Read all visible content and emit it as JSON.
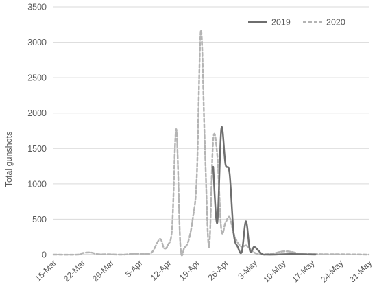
{
  "chart_data": {
    "type": "line",
    "title": "",
    "xlabel": "",
    "ylabel": "Total gunshots",
    "ylim": [
      0,
      3500
    ],
    "yticks": [
      "0",
      "500",
      "1000",
      "1500",
      "2000",
      "2500",
      "3000",
      "3500"
    ],
    "xlim": [
      "2020-03-15",
      "2020-05-31"
    ],
    "xticks": [
      "15-Mar",
      "22-Mar",
      "29-Mar",
      "5-Apr",
      "12-Apr",
      "19-Apr",
      "26-Apr",
      "3-May",
      "10-May",
      "17-May",
      "24-May",
      "31-May"
    ],
    "grid": true,
    "legend_position": "top-right",
    "series": [
      {
        "name": "2019",
        "color": "#6e6e6e",
        "style": "solid",
        "points": [
          [
            "2020-04-23",
            1240
          ],
          [
            "2020-04-24",
            450
          ],
          [
            "2020-04-25",
            1780
          ],
          [
            "2020-04-26",
            1280
          ],
          [
            "2020-04-27",
            1150
          ],
          [
            "2020-04-28",
            300
          ],
          [
            "2020-04-29",
            110
          ],
          [
            "2020-04-30",
            40
          ],
          [
            "2020-05-01",
            470
          ],
          [
            "2020-05-02",
            50
          ],
          [
            "2020-05-03",
            110
          ],
          [
            "2020-05-04",
            60
          ],
          [
            "2020-05-05",
            5
          ],
          [
            "2020-05-06",
            0
          ],
          [
            "2020-05-08",
            0
          ],
          [
            "2020-05-12",
            8
          ],
          [
            "2020-05-16",
            2
          ],
          [
            "2020-05-18",
            0
          ]
        ]
      },
      {
        "name": "2020",
        "color": "#b4b4b4",
        "style": "dashed",
        "points": [
          [
            "2020-03-15",
            0
          ],
          [
            "2020-03-21",
            0
          ],
          [
            "2020-03-22",
            20
          ],
          [
            "2020-03-24",
            30
          ],
          [
            "2020-03-26",
            5
          ],
          [
            "2020-03-28",
            5
          ],
          [
            "2020-04-01",
            0
          ],
          [
            "2020-04-04",
            15
          ],
          [
            "2020-04-06",
            10
          ],
          [
            "2020-04-08",
            30
          ],
          [
            "2020-04-10",
            220
          ],
          [
            "2020-04-11",
            90
          ],
          [
            "2020-04-12",
            140
          ],
          [
            "2020-04-13",
            400
          ],
          [
            "2020-04-14",
            1770
          ],
          [
            "2020-04-15",
            120
          ],
          [
            "2020-04-16",
            100
          ],
          [
            "2020-04-17",
            200
          ],
          [
            "2020-04-18",
            500
          ],
          [
            "2020-04-19",
            1100
          ],
          [
            "2020-04-20",
            3170
          ],
          [
            "2020-04-21",
            1500
          ],
          [
            "2020-04-22",
            100
          ],
          [
            "2020-04-23",
            1620
          ],
          [
            "2020-04-24",
            1400
          ],
          [
            "2020-04-25",
            350
          ],
          [
            "2020-04-26",
            450
          ],
          [
            "2020-04-27",
            530
          ],
          [
            "2020-04-28",
            300
          ],
          [
            "2020-04-29",
            170
          ],
          [
            "2020-04-30",
            110
          ],
          [
            "2020-05-01",
            130
          ],
          [
            "2020-05-02",
            80
          ],
          [
            "2020-05-03",
            30
          ],
          [
            "2020-05-04",
            10
          ],
          [
            "2020-05-06",
            5
          ],
          [
            "2020-05-08",
            20
          ],
          [
            "2020-05-10",
            45
          ],
          [
            "2020-05-12",
            40
          ],
          [
            "2020-05-14",
            15
          ],
          [
            "2020-05-17",
            10
          ],
          [
            "2020-05-20",
            5
          ],
          [
            "2020-05-24",
            5
          ],
          [
            "2020-05-31",
            0
          ]
        ]
      }
    ]
  }
}
